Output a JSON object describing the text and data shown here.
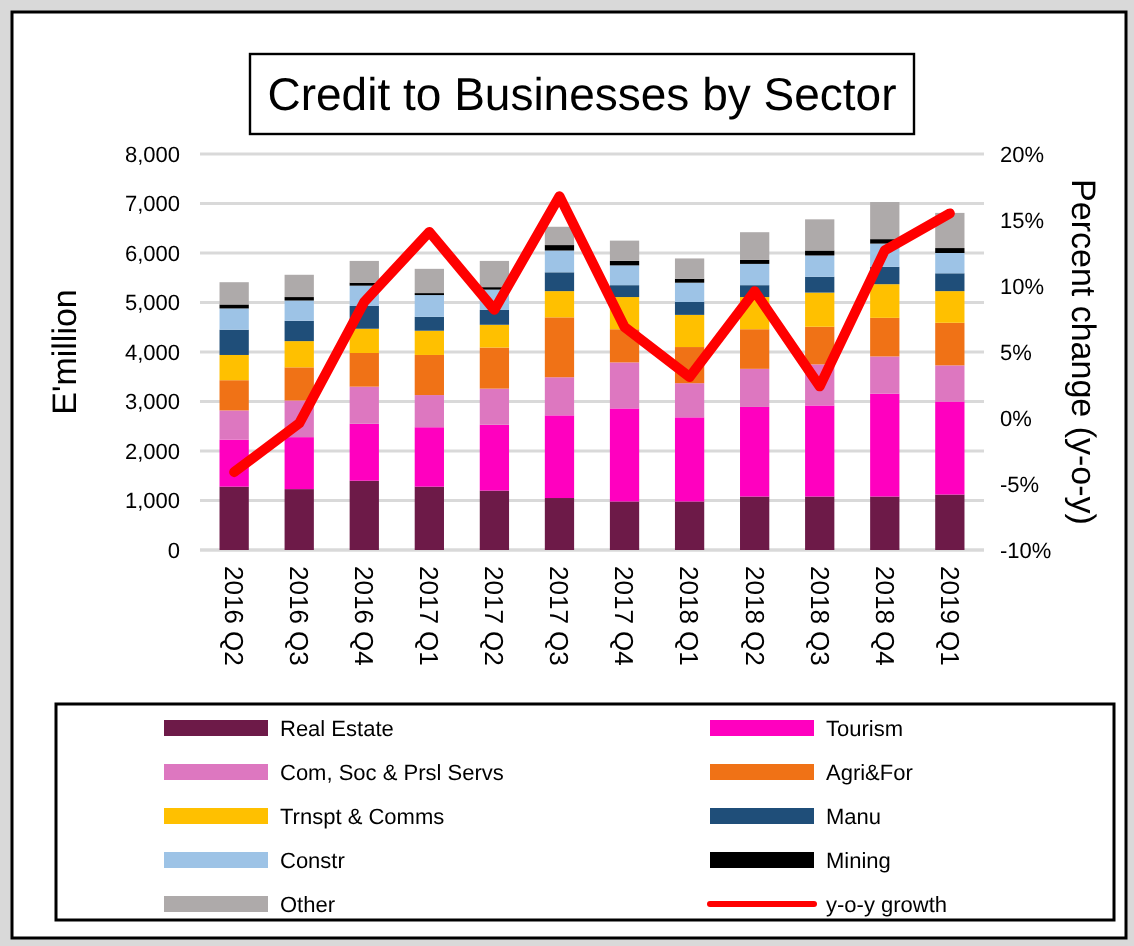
{
  "chart_data": {
    "type": "bar",
    "title": "Credit to Businesses by Sector",
    "ylabel": "E'million",
    "y2label": "Percent change (y-o-y)",
    "categories": [
      "2016 Q2",
      "2016 Q3",
      "2016 Q4",
      "2017 Q1",
      "2017 Q2",
      "2017 Q3",
      "2017 Q4",
      "2018 Q1",
      "2018 Q2",
      "2018 Q3",
      "2018 Q4",
      "2019 Q1"
    ],
    "stacked": true,
    "grid": "y",
    "legend": "bottom",
    "ylim": [
      0,
      8000
    ],
    "yticks": [
      {
        "value": 0,
        "label": "0"
      },
      {
        "value": 1000,
        "label": "1,000"
      },
      {
        "value": 2000,
        "label": "2,000"
      },
      {
        "value": 3000,
        "label": "3,000"
      },
      {
        "value": 4000,
        "label": "4,000"
      },
      {
        "value": 5000,
        "label": "5,000"
      },
      {
        "value": 6000,
        "label": "6,000"
      },
      {
        "value": 7000,
        "label": "7,000"
      },
      {
        "value": 8000,
        "label": "8,000"
      }
    ],
    "y2lim": [
      -10,
      20
    ],
    "y2ticks": [
      {
        "value": -10,
        "label": "-10%"
      },
      {
        "value": -5,
        "label": "-5%"
      },
      {
        "value": 0,
        "label": "0%"
      },
      {
        "value": 5,
        "label": "5%"
      },
      {
        "value": 10,
        "label": "10%"
      },
      {
        "value": 15,
        "label": "15%"
      },
      {
        "value": 20,
        "label": "20%"
      }
    ],
    "series": [
      {
        "name": "Real Estate",
        "color": "#6d1a48",
        "values": [
          1280,
          1230,
          1400,
          1280,
          1200,
          1050,
          980,
          980,
          1080,
          1080,
          1080,
          1120
        ]
      },
      {
        "name": "Tourism",
        "color": "#ff00bf",
        "values": [
          950,
          1050,
          1150,
          1200,
          1330,
          1670,
          1880,
          1700,
          1810,
          1840,
          2080,
          1880
        ]
      },
      {
        "name": "Com, Soc & Prsl Servs",
        "color": "#dd77c0",
        "values": [
          590,
          740,
          750,
          650,
          730,
          770,
          930,
          690,
          770,
          830,
          750,
          730
        ]
      },
      {
        "name": "Agri&For",
        "color": "#f07216",
        "values": [
          610,
          670,
          680,
          810,
          830,
          1210,
          670,
          730,
          800,
          760,
          780,
          860
        ]
      },
      {
        "name": "Trnspt & Comms",
        "color": "#ffc000",
        "values": [
          510,
          530,
          490,
          490,
          460,
          530,
          650,
          650,
          650,
          690,
          680,
          640
        ]
      },
      {
        "name": "Manu",
        "color": "#1f4e79",
        "values": [
          510,
          410,
          460,
          280,
          300,
          380,
          240,
          260,
          240,
          320,
          350,
          360
        ]
      },
      {
        "name": "Constr",
        "color": "#9dc3e6",
        "values": [
          430,
          410,
          410,
          440,
          410,
          440,
          400,
          390,
          430,
          430,
          470,
          410
        ]
      },
      {
        "name": "Mining",
        "color": "#000000",
        "values": [
          80,
          70,
          60,
          40,
          50,
          110,
          90,
          80,
          80,
          100,
          90,
          100
        ]
      },
      {
        "name": "Other",
        "color": "#aeaaaa",
        "values": [
          450,
          450,
          440,
          490,
          530,
          370,
          410,
          410,
          560,
          630,
          750,
          710
        ]
      },
      {
        "name": "y-o-y growth",
        "type": "line",
        "axis": "y2",
        "color": "#ff0000",
        "values": [
          -4.1,
          -0.4,
          8.8,
          14.1,
          8.2,
          16.8,
          6.9,
          3.1,
          9.6,
          2.4,
          12.7,
          15.5
        ]
      }
    ]
  }
}
